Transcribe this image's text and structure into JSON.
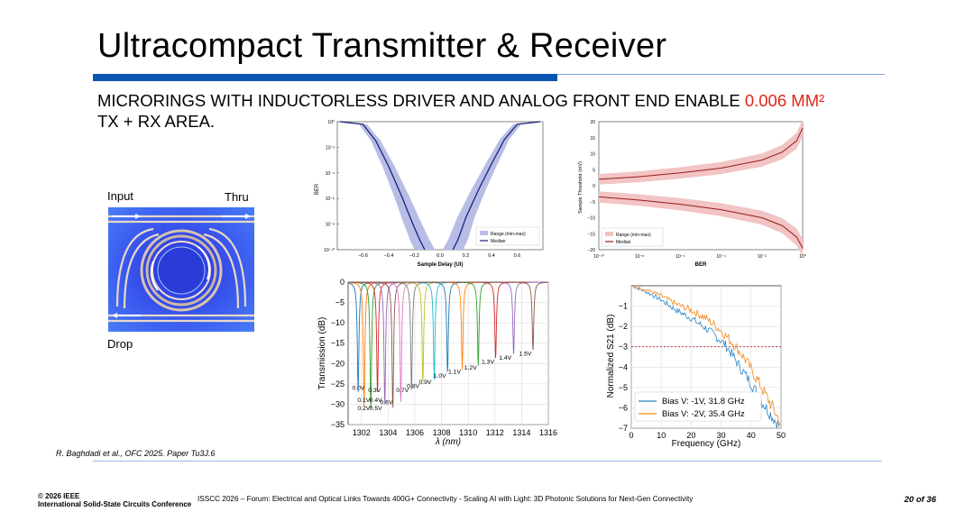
{
  "slide": {
    "title": "Ultracompact Transmitter & Receiver",
    "subtitle_pre": "MICRORINGS WITH INDUCTORLESS DRIVER AND ANALOG FRONT END ENABLE ",
    "subtitle_highlight": "0.006 MM²",
    "subtitle_post": "TX + RX AREA.",
    "accent_color": "#0a55b0",
    "highlight_color": "#e0261c"
  },
  "ring_figure": {
    "input_label": "Input",
    "thru_label": "Thru",
    "drop_label": "Drop"
  },
  "chart_data": [
    {
      "type": "line",
      "title": "",
      "xlabel": "Sample Delay (UI)",
      "ylabel": "BER",
      "xlim": [
        -0.8,
        0.8
      ],
      "ylim_log10": [
        -10,
        0
      ],
      "x_ticks": [
        "−0.6",
        "−0.4",
        "−0.2",
        "0.0",
        "0.2",
        "0.4",
        "0.6"
      ],
      "y_ticks": [
        "10⁰",
        "10⁻²",
        "10⁻⁴",
        "10⁻⁶",
        "10⁻⁸",
        "10⁻¹⁰"
      ],
      "legend": [
        "Range (min-max)",
        "Median"
      ],
      "legend_position": "bottom-right",
      "series": [
        {
          "name": "Median left",
          "x": [
            -0.78,
            -0.6,
            -0.5,
            -0.4,
            -0.3,
            -0.22,
            -0.16,
            -0.12
          ],
          "log10_ber": [
            0,
            -0.2,
            -1.5,
            -3.5,
            -5.8,
            -7.8,
            -9.2,
            -10
          ]
        },
        {
          "name": "Median right",
          "x": [
            0.1,
            0.14,
            0.2,
            0.3,
            0.4,
            0.5,
            0.6,
            0.78
          ],
          "log10_ber": [
            -10,
            -9.2,
            -7.5,
            -5.3,
            -3.3,
            -1.4,
            -0.2,
            0
          ]
        }
      ]
    },
    {
      "type": "line",
      "title": "",
      "xlabel": "BER",
      "ylabel": "Sample Threshold (mV)",
      "xlim_log10": [
        -10,
        0
      ],
      "ylim": [
        -20,
        20
      ],
      "x_ticks": [
        "10⁻¹⁰",
        "10⁻⁸",
        "10⁻⁶",
        "10⁻⁴",
        "10⁻²",
        "10⁰"
      ],
      "y_ticks": [
        "20",
        "15",
        "10",
        "5",
        "0",
        "−5",
        "−10",
        "−15",
        "−20"
      ],
      "legend": [
        "Range (min-max)",
        "Median"
      ],
      "legend_position": "bottom-left",
      "series": [
        {
          "name": "Median upper",
          "log10_ber": [
            -10,
            -8,
            -6,
            -4,
            -2,
            -1,
            -0.3,
            0
          ],
          "mv": [
            2,
            2.8,
            4,
            5.5,
            8,
            10.5,
            14,
            18
          ]
        },
        {
          "name": "Median lower",
          "log10_ber": [
            -10,
            -8,
            -6,
            -4,
            -2,
            -1,
            -0.3,
            0
          ],
          "mv": [
            -3.5,
            -4.5,
            -5.8,
            -7.5,
            -10,
            -12.5,
            -16,
            -19.5
          ]
        }
      ]
    },
    {
      "type": "line",
      "title": "",
      "xlabel": "λ (nm)",
      "ylabel": "Transmission (dB)",
      "xlim": [
        1301,
        1316
      ],
      "ylim": [
        -35,
        0
      ],
      "x_ticks": [
        "1302",
        "1304",
        "1306",
        "1308",
        "1310",
        "1312",
        "1314",
        "1316"
      ],
      "y_ticks": [
        "0",
        "−5",
        "−10",
        "−15",
        "−20",
        "−25",
        "−30",
        "−35"
      ],
      "resonances_nm": [
        1301.75,
        1302.2,
        1302.7,
        1303.2,
        1303.75,
        1304.35,
        1304.95,
        1305.75,
        1306.6,
        1307.45,
        1308.45,
        1309.55,
        1310.75,
        1312.05,
        1313.4,
        1314.85
      ],
      "bias_labels": [
        "0.0V",
        "0.1V",
        "0.2V",
        "0.3V",
        "0.4V",
        "0.5V",
        "0.6V",
        "0.7V",
        "0.8V",
        "0.9V",
        "1.0V",
        "1.1V",
        "1.2V",
        "1.3V",
        "1.4V",
        "1.5V"
      ]
    },
    {
      "type": "line",
      "title": "",
      "xlabel": "Frequency (GHz)",
      "ylabel": "Normalized S21 (dB)",
      "xlim": [
        0,
        50
      ],
      "ylim": [
        -7,
        0
      ],
      "x_ticks": [
        "0",
        "10",
        "20",
        "30",
        "40",
        "50"
      ],
      "y_ticks": [
        "−1",
        "−2",
        "−3",
        "−4",
        "−5",
        "−6",
        "−7"
      ],
      "reference_line_db": -3,
      "legend_position": "bottom-left",
      "series": [
        {
          "name": "Bias V: -1V, 31.8 GHz",
          "color": "#2a86c8",
          "x": [
            0,
            5,
            10,
            15,
            20,
            25,
            30,
            32,
            35,
            40,
            45,
            48,
            50
          ],
          "y": [
            0,
            -0.3,
            -0.7,
            -1.2,
            -1.6,
            -2.1,
            -2.7,
            -3.0,
            -3.7,
            -4.8,
            -6.0,
            -6.6,
            -7.0
          ]
        },
        {
          "name": "Bias V: -2V, 35.4 GHz",
          "color": "#f28a1c",
          "x": [
            0,
            5,
            10,
            15,
            20,
            25,
            30,
            35,
            38,
            42,
            45,
            48,
            50
          ],
          "y": [
            0,
            -0.2,
            -0.5,
            -0.9,
            -1.2,
            -1.6,
            -2.2,
            -3.0,
            -3.6,
            -4.6,
            -5.4,
            -6.2,
            -6.8
          ]
        }
      ]
    }
  ],
  "footer": {
    "citation": "R. Baghdadi et al., OFC 2025. Paper Tu3J.6",
    "copyright_line1": "© 2026 IEEE",
    "copyright_line2": "International Solid-State Circuits Conference",
    "center": "ISSCC 2026 – Forum: Electrical and Optical Links Towards 400G+ Connectivity - Scaling AI with Light: 3D Photonic Solutions for Next-Gen Connectivity",
    "page": "20 of 36"
  }
}
